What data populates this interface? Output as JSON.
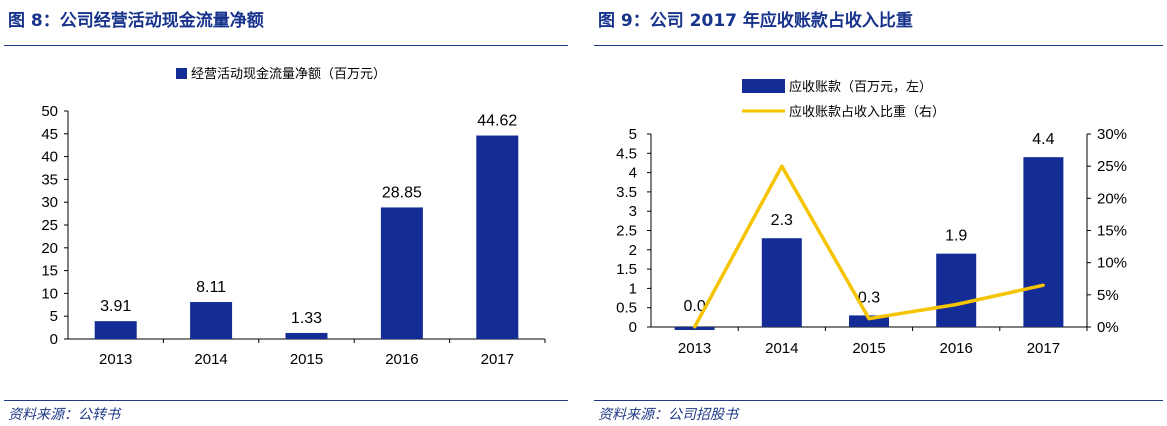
{
  "figures": [
    {
      "title": "图 8：公司经营活动现金流量净额",
      "source": "资料来源：公转书",
      "chart_data": {
        "type": "bar",
        "title": "",
        "categories": [
          "2013",
          "2014",
          "2015",
          "2016",
          "2017"
        ],
        "series": [
          {
            "name": "经营活动现金流量净额（百万元）",
            "values": [
              3.91,
              8.11,
              1.33,
              28.85,
              44.62
            ],
            "color": "#142c96"
          }
        ],
        "data_labels": [
          "3.91",
          "8.11",
          "1.33",
          "28.85",
          "44.62"
        ],
        "ylim": [
          0,
          50
        ],
        "yticks": [
          "0",
          "5",
          "10",
          "15",
          "20",
          "25",
          "30",
          "35",
          "40",
          "45",
          "50"
        ],
        "legend_position": "top-center",
        "grid": false
      }
    },
    {
      "title": "图 9：公司 2017 年应收账款占收入比重",
      "source": "资料来源：公司招股书",
      "chart_data": {
        "type": "bar",
        "title": "",
        "categories": [
          "2013",
          "2014",
          "2015",
          "2016",
          "2017"
        ],
        "series": [
          {
            "name": "应收账款（百万元，左）",
            "type": "bar",
            "axis": "left",
            "values": [
              0.0,
              2.3,
              0.3,
              1.9,
              4.4
            ],
            "color": "#142c96"
          },
          {
            "name": "应收账款占收入比重（右）",
            "type": "line",
            "axis": "right",
            "values": [
              0.0,
              0.25,
              0.013,
              0.035,
              0.065
            ],
            "color": "#f5c400"
          }
        ],
        "data_labels": [
          "0.0",
          "2.3",
          "0.3",
          "1.9",
          "4.4"
        ],
        "ylim": [
          0,
          5
        ],
        "yticks": [
          "0",
          "0.5",
          "1",
          "1.5",
          "2",
          "2.5",
          "3",
          "3.5",
          "4",
          "4.5",
          "5"
        ],
        "y2lim": [
          0,
          0.3
        ],
        "y2ticks": [
          "0%",
          "5%",
          "10%",
          "15%",
          "20%",
          "25%",
          "30%"
        ],
        "legend_position": "top-left",
        "grid": false
      }
    }
  ]
}
